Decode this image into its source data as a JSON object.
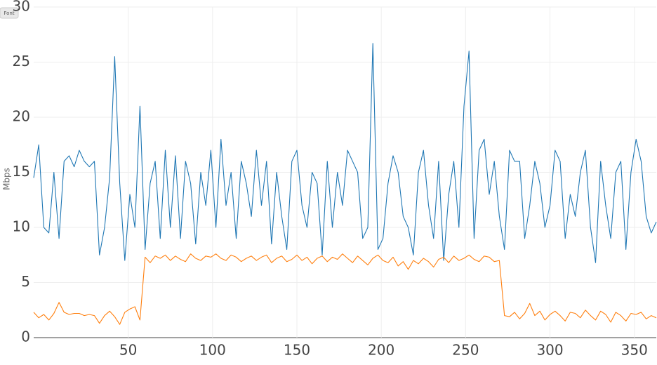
{
  "ui": {
    "button": "Font"
  },
  "chart_data": {
    "type": "line",
    "y_label": "Mbps",
    "x": [
      -6,
      -3,
      0,
      3,
      6,
      9,
      12,
      15,
      18,
      21,
      24,
      27,
      30,
      33,
      36,
      39,
      42,
      45,
      48,
      51,
      54,
      57,
      60,
      63,
      66,
      69,
      72,
      75,
      78,
      81,
      84,
      87,
      90,
      93,
      96,
      99,
      102,
      105,
      108,
      111,
      114,
      117,
      120,
      123,
      126,
      129,
      132,
      135,
      138,
      141,
      144,
      147,
      150,
      153,
      156,
      159,
      162,
      165,
      168,
      171,
      174,
      177,
      180,
      183,
      186,
      189,
      192,
      195,
      198,
      201,
      204,
      207,
      210,
      213,
      216,
      219,
      222,
      225,
      228,
      231,
      234,
      237,
      240,
      243,
      246,
      249,
      252,
      255,
      258,
      261,
      264,
      267,
      270,
      273,
      276,
      279,
      282,
      285,
      288,
      291,
      294,
      297,
      300,
      303,
      306,
      309,
      312,
      315,
      318,
      321,
      324,
      327,
      330,
      333,
      336,
      339,
      342,
      345,
      348,
      351,
      354,
      357,
      360,
      363
    ],
    "series": [
      {
        "color": "#1f77b4",
        "values": [
          14.5,
          17.5,
          10,
          9.5,
          15,
          9,
          16,
          16.5,
          15.5,
          17,
          16,
          15.5,
          16,
          7.5,
          10,
          14.5,
          25.5,
          14,
          7,
          13,
          10,
          21,
          8,
          14,
          16,
          9,
          17,
          10,
          16.5,
          9,
          16,
          14,
          8.5,
          15,
          12,
          17,
          10,
          18,
          12,
          15,
          9,
          16,
          14,
          11,
          17,
          12,
          16,
          8.5,
          15,
          11,
          8,
          16,
          17,
          12,
          10,
          15,
          14,
          7.5,
          16,
          10,
          15,
          12,
          17,
          16,
          15,
          9,
          10,
          26.7,
          8,
          9,
          14,
          16.5,
          15,
          11,
          10,
          7.5,
          15,
          17,
          12,
          9,
          16,
          7,
          13,
          16,
          10,
          21,
          26,
          9,
          17,
          18,
          13,
          16,
          11,
          8,
          17,
          16,
          16,
          9,
          12,
          16,
          14,
          10,
          12,
          17,
          16,
          9,
          13,
          11,
          15,
          17,
          10,
          6.8,
          16,
          12,
          9,
          15,
          16,
          8,
          15,
          18,
          16,
          11,
          9.5,
          10.5
        ]
      },
      {
        "color": "#ff7f0e",
        "values": [
          2.3,
          1.8,
          2.1,
          1.6,
          2.2,
          3.2,
          2.3,
          2.1,
          2.2,
          2.2,
          2.0,
          2.1,
          2.0,
          1.3,
          2.0,
          2.4,
          1.9,
          1.2,
          2.3,
          2.6,
          2.8,
          1.6,
          7.3,
          6.8,
          7.4,
          7.2,
          7.5,
          7.0,
          7.4,
          7.1,
          6.9,
          7.6,
          7.2,
          7.0,
          7.4,
          7.3,
          7.6,
          7.2,
          7.0,
          7.5,
          7.3,
          6.9,
          7.2,
          7.4,
          7.0,
          7.3,
          7.5,
          6.8,
          7.2,
          7.4,
          6.9,
          7.1,
          7.5,
          7.0,
          7.3,
          6.7,
          7.2,
          7.4,
          6.9,
          7.3,
          7.1,
          7.6,
          7.2,
          6.8,
          7.4,
          7.0,
          6.6,
          7.2,
          7.5,
          7.0,
          6.8,
          7.3,
          6.5,
          6.9,
          6.2,
          7.0,
          6.7,
          7.2,
          6.9,
          6.4,
          7.1,
          7.3,
          6.8,
          7.4,
          7.0,
          7.2,
          7.5,
          7.1,
          6.9,
          7.4,
          7.3,
          6.9,
          7.0,
          2.0,
          1.9,
          2.3,
          1.7,
          2.2,
          3.1,
          2.0,
          2.4,
          1.6,
          2.1,
          2.4,
          2.0,
          1.5,
          2.3,
          2.2,
          1.8,
          2.5,
          2.0,
          1.6,
          2.4,
          2.1,
          1.4,
          2.3,
          2.0,
          1.5,
          2.2,
          2.1,
          2.3,
          1.7,
          2.0,
          1.8
        ]
      }
    ],
    "xlim": [
      -6,
      363
    ],
    "xticks": [
      50,
      100,
      150,
      200,
      250,
      300,
      350
    ],
    "ylim": [
      0,
      30
    ],
    "yticks": [
      0,
      5,
      10,
      15,
      20,
      25,
      30
    ],
    "grid": true
  }
}
